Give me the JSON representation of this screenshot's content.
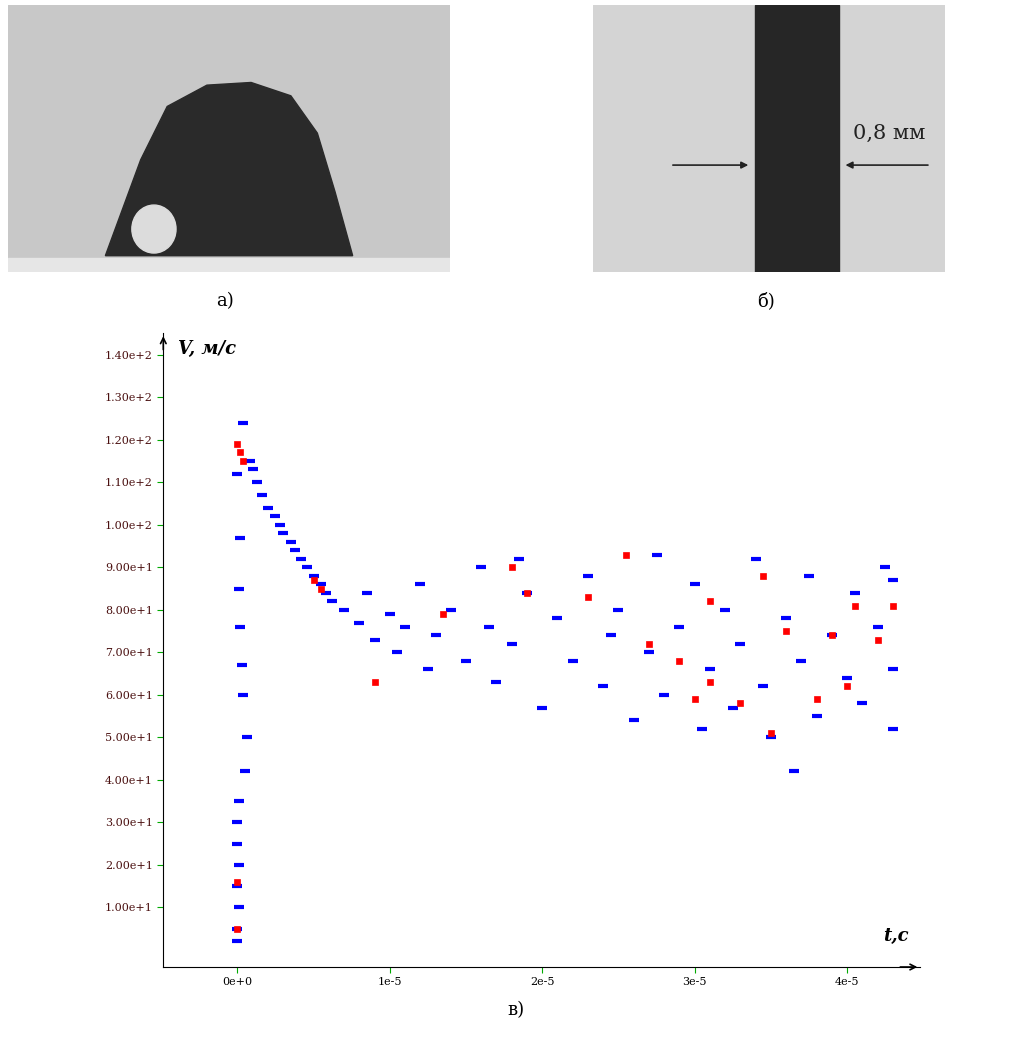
{
  "chart_data": {
    "type": "scatter",
    "caption": "в)",
    "y_label": "V, м/с",
    "x_label": "t,c",
    "xlim": [
      -4.86e-06,
      4.48e-05
    ],
    "ylim": [
      -4,
      145
    ],
    "xticks": [
      {
        "value": 0,
        "label": "0e+0"
      },
      {
        "value": 1e-05,
        "label": "1e-5"
      },
      {
        "value": 2e-05,
        "label": "2e-5"
      },
      {
        "value": 3e-05,
        "label": "3e-5"
      },
      {
        "value": 4e-05,
        "label": "4e-5"
      }
    ],
    "yticks": [
      {
        "value": 10,
        "label": "1.00e+1"
      },
      {
        "value": 20,
        "label": "2.00e+1"
      },
      {
        "value": 30,
        "label": "3.00e+1"
      },
      {
        "value": 40,
        "label": "4.00e+1"
      },
      {
        "value": 50,
        "label": "5.00e+1"
      },
      {
        "value": 60,
        "label": "6.00e+1"
      },
      {
        "value": 70,
        "label": "7.00e+1"
      },
      {
        "value": 80,
        "label": "8.00e+1"
      },
      {
        "value": 90,
        "label": "9.00e+1"
      },
      {
        "value": 100,
        "label": "1.00e+2"
      },
      {
        "value": 110,
        "label": "1.10e+2"
      },
      {
        "value": 120,
        "label": "1.20e+2"
      },
      {
        "value": 130,
        "label": "1.30e+2"
      },
      {
        "value": 140,
        "label": "1.40e+2"
      }
    ],
    "grid": false,
    "series": [
      {
        "color": "#0000ff",
        "marker": "dash",
        "x": [
          0,
          0,
          1e-07,
          0,
          1e-07,
          0,
          0,
          1e-07,
          5e-07,
          6e-07,
          4e-07,
          3e-07,
          2e-07,
          1e-07,
          2e-07,
          0,
          4e-07,
          8e-07,
          1e-06,
          1.3e-06,
          1.6e-06,
          2e-06,
          2.5e-06,
          2.8e-06,
          3e-06,
          3.5e-06,
          3.8e-06,
          4.2e-06,
          4.6e-06,
          5e-06,
          5.5e-06,
          5.8e-06,
          6.2e-06,
          7e-06,
          8e-06,
          8.5e-06,
          9e-06,
          1e-05,
          1.05e-05,
          1.1e-05,
          1.2e-05,
          1.25e-05,
          1.3e-05,
          1.4e-05,
          1.5e-05,
          1.6e-05,
          1.65e-05,
          1.7e-05,
          1.8e-05,
          1.85e-05,
          1.9e-05,
          2e-05,
          2.1e-05,
          2.2e-05,
          2.3e-05,
          2.4e-05,
          2.45e-05,
          2.5e-05,
          2.6e-05,
          2.7e-05,
          2.75e-05,
          2.8e-05,
          2.9e-05,
          3e-05,
          3.05e-05,
          3.1e-05,
          3.2e-05,
          3.25e-05,
          3.3e-05,
          3.4e-05,
          3.45e-05,
          3.5e-05,
          3.6e-05,
          3.65e-05,
          3.7e-05,
          3.75e-05,
          3.8e-05,
          3.9e-05,
          4e-05,
          4.05e-05,
          4.1e-05,
          4.2e-05,
          4.25e-05,
          4.3e-05,
          4.3e-05,
          4.3e-05
        ],
        "values": [
          2,
          5,
          10,
          15,
          20,
          25,
          30,
          35,
          42,
          50,
          60,
          67,
          76,
          85,
          97,
          112,
          124,
          115,
          113,
          110,
          107,
          104,
          102,
          100,
          98,
          96,
          94,
          92,
          90,
          88,
          86,
          84,
          82,
          80,
          77,
          84,
          73,
          79,
          70,
          76,
          86,
          66,
          74,
          80,
          68,
          90,
          76,
          63,
          72,
          92,
          84,
          57,
          78,
          68,
          88,
          62,
          74,
          80,
          54,
          70,
          93,
          60,
          76,
          86,
          52,
          66,
          80,
          57,
          72,
          92,
          62,
          50,
          78,
          42,
          68,
          88,
          55,
          74,
          64,
          84,
          58,
          76,
          90,
          66,
          52,
          87
        ]
      },
      {
        "color": "#ff0000",
        "marker": "square",
        "x": [
          0,
          0,
          0,
          2e-07,
          4e-07,
          5e-06,
          5.5e-06,
          9e-06,
          1.35e-05,
          1.8e-05,
          1.9e-05,
          2.3e-05,
          2.55e-05,
          2.7e-05,
          2.9e-05,
          3.1e-05,
          3.1e-05,
          3.3e-05,
          3.45e-05,
          3.5e-05,
          3.6e-05,
          3.8e-05,
          3.9e-05,
          4e-05,
          4.05e-05,
          4.2e-05,
          4.3e-05,
          3e-05
        ],
        "values": [
          5,
          16,
          119,
          117,
          115,
          87,
          85,
          63,
          79,
          90,
          84,
          83,
          93,
          72,
          68,
          82,
          63,
          58,
          88,
          51,
          75,
          59,
          74,
          62,
          81,
          73,
          81,
          59
        ]
      }
    ]
  },
  "photos": [
    {
      "caption": "а)"
    },
    {
      "caption": "б)",
      "annotation": "0,8 мм"
    }
  ]
}
